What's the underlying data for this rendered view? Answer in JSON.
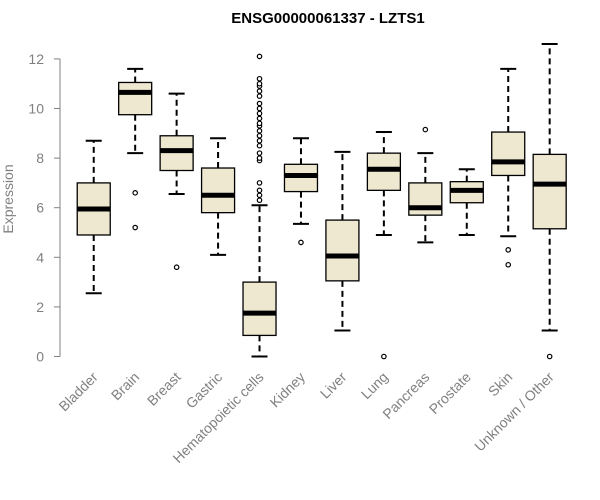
{
  "chart_data": {
    "type": "box",
    "title": "ENSG00000061337 - LZTS1",
    "ylabel": "Expression",
    "xlabel": "",
    "ylim": [
      0,
      12
    ],
    "yticks": [
      0,
      2,
      4,
      6,
      8,
      10,
      12
    ],
    "grid": false,
    "colors": {
      "box_fill": "#efe8d0",
      "box_stroke": "#000000",
      "axis": "#808080"
    },
    "categories": [
      "Bladder",
      "Brain",
      "Breast",
      "Gastric",
      "Hematopoietic cells",
      "Kidney",
      "Liver",
      "Lung",
      "Pancreas",
      "Prostate",
      "Skin",
      "Unknown / Other"
    ],
    "boxes": [
      {
        "category": "Bladder",
        "whisker_low": 2.55,
        "q1": 4.9,
        "median": 5.95,
        "q3": 7.0,
        "whisker_high": 8.7,
        "outliers": []
      },
      {
        "category": "Brain",
        "whisker_low": 8.2,
        "q1": 9.75,
        "median": 10.65,
        "q3": 11.05,
        "whisker_high": 11.6,
        "outliers": [
          6.6,
          5.2
        ]
      },
      {
        "category": "Breast",
        "whisker_low": 6.55,
        "q1": 7.5,
        "median": 8.3,
        "q3": 8.9,
        "whisker_high": 10.6,
        "outliers": [
          3.6
        ]
      },
      {
        "category": "Gastric",
        "whisker_low": 4.1,
        "q1": 5.8,
        "median": 6.5,
        "q3": 7.6,
        "whisker_high": 8.8,
        "outliers": []
      },
      {
        "category": "Hematopoietic cells",
        "whisker_low": 0.0,
        "q1": 0.85,
        "median": 1.75,
        "q3": 3.0,
        "whisker_high": 6.1,
        "outliers": [
          6.3,
          6.5,
          6.7,
          7.0,
          7.9,
          8.0,
          8.2,
          8.5,
          8.7,
          8.9,
          9.1,
          9.3,
          9.4,
          9.6,
          9.8,
          10.0,
          10.2,
          10.5,
          10.7,
          10.9,
          11.0,
          11.2,
          12.1
        ]
      },
      {
        "category": "Kidney",
        "whisker_low": 5.35,
        "q1": 6.65,
        "median": 7.3,
        "q3": 7.75,
        "whisker_high": 8.8,
        "outliers": [
          4.6
        ]
      },
      {
        "category": "Liver",
        "whisker_low": 1.05,
        "q1": 3.05,
        "median": 4.05,
        "q3": 5.5,
        "whisker_high": 8.25,
        "outliers": []
      },
      {
        "category": "Lung",
        "whisker_low": 4.9,
        "q1": 6.7,
        "median": 7.55,
        "q3": 8.2,
        "whisker_high": 9.05,
        "outliers": [
          0.0
        ]
      },
      {
        "category": "Pancreas",
        "whisker_low": 4.6,
        "q1": 5.7,
        "median": 6.0,
        "q3": 7.0,
        "whisker_high": 8.2,
        "outliers": [
          9.15
        ]
      },
      {
        "category": "Prostate",
        "whisker_low": 4.9,
        "q1": 6.2,
        "median": 6.7,
        "q3": 7.05,
        "whisker_high": 7.55,
        "outliers": []
      },
      {
        "category": "Skin",
        "whisker_low": 4.85,
        "q1": 7.3,
        "median": 7.85,
        "q3": 9.05,
        "whisker_high": 11.6,
        "outliers": [
          4.3,
          3.7
        ]
      },
      {
        "category": "Unknown / Other",
        "whisker_low": 1.05,
        "q1": 5.15,
        "median": 6.95,
        "q3": 8.15,
        "whisker_high": 12.6,
        "outliers": [
          0.0
        ]
      }
    ]
  }
}
